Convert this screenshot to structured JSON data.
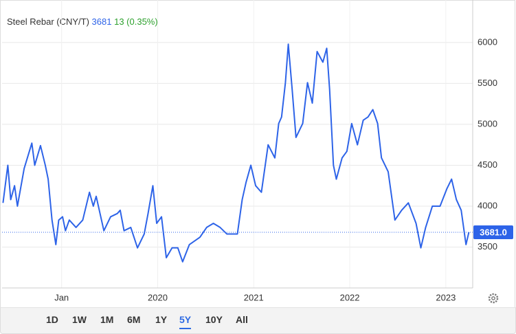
{
  "header": {
    "name": "Steel Rebar (CNY/T)",
    "price": "3681",
    "change": "13 (0.35%)"
  },
  "chart_data": {
    "type": "line",
    "series": [
      {
        "name": "Steel Rebar (CNY/T)",
        "color": "#2d63e8",
        "x": [
          2018.39,
          2018.44,
          2018.47,
          2018.51,
          2018.54,
          2018.61,
          2018.69,
          2018.72,
          2018.78,
          2018.83,
          2018.86,
          2018.9,
          2018.94,
          2018.97,
          2019.01,
          2019.04,
          2019.08,
          2019.15,
          2019.22,
          2019.29,
          2019.33,
          2019.36,
          2019.44,
          2019.51,
          2019.58,
          2019.61,
          2019.65,
          2019.72,
          2019.79,
          2019.86,
          2019.9,
          2019.95,
          2019.99,
          2020.04,
          2020.09,
          2020.15,
          2020.21,
          2020.26,
          2020.33,
          2020.44,
          2020.51,
          2020.58,
          2020.65,
          2020.72,
          2020.83,
          2020.88,
          2020.92,
          2020.97,
          2021.02,
          2021.08,
          2021.15,
          2021.22,
          2021.26,
          2021.29,
          2021.33,
          2021.36,
          2021.4,
          2021.44,
          2021.51,
          2021.56,
          2021.61,
          2021.66,
          2021.72,
          2021.76,
          2021.79,
          2021.83,
          2021.86,
          2021.92,
          2021.97,
          2022.02,
          2022.08,
          2022.14,
          2022.19,
          2022.24,
          2022.29,
          2022.33,
          2022.4,
          2022.47,
          2022.54,
          2022.61,
          2022.69,
          2022.74,
          2022.79,
          2022.86,
          2022.94,
          2023.01,
          2023.06,
          2023.11,
          2023.16,
          2023.21,
          2023.24
        ],
        "values": [
          4040,
          4500,
          4080,
          4250,
          4000,
          4460,
          4770,
          4500,
          4740,
          4500,
          4330,
          3830,
          3530,
          3830,
          3870,
          3700,
          3830,
          3740,
          3830,
          4170,
          4000,
          4120,
          3700,
          3870,
          3910,
          3950,
          3700,
          3740,
          3490,
          3660,
          3910,
          4250,
          3790,
          3870,
          3370,
          3490,
          3490,
          3320,
          3530,
          3620,
          3740,
          3790,
          3740,
          3660,
          3660,
          4080,
          4290,
          4500,
          4250,
          4170,
          4750,
          4590,
          5010,
          5090,
          5510,
          5980,
          5430,
          4840,
          5010,
          5510,
          5260,
          5890,
          5760,
          5930,
          5430,
          4500,
          4330,
          4590,
          4670,
          5010,
          4750,
          5050,
          5090,
          5180,
          5010,
          4590,
          4420,
          3830,
          3950,
          4040,
          3790,
          3490,
          3740,
          4000,
          4000,
          4210,
          4330,
          4080,
          3950,
          3530,
          3681
        ]
      }
    ],
    "xlim": [
      2018.38,
      2023.28
    ],
    "xticks": [
      {
        "value": 2019,
        "label": "Jan"
      },
      2020,
      2021,
      2022,
      2023
    ],
    "ylim": [
      3000,
      6520
    ],
    "yticks": [
      3500,
      4000,
      4500,
      5000,
      5500,
      6000
    ],
    "grid": true,
    "price_tag": {
      "value": 3681,
      "label": "3681.0"
    }
  },
  "ranges": [
    "1D",
    "1W",
    "1M",
    "6M",
    "1Y",
    "5Y",
    "10Y",
    "All"
  ],
  "active_range": "5Y"
}
